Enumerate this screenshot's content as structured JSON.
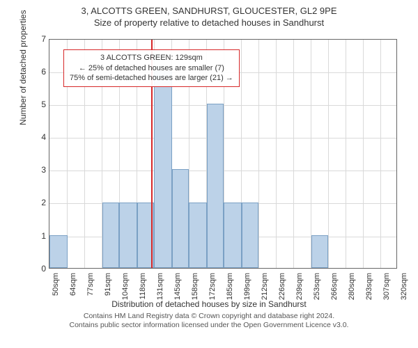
{
  "title_main": "3, ALCOTTS GREEN, SANDHURST, GLOUCESTER, GL2 9PE",
  "title_sub": "Size of property relative to detached houses in Sandhurst",
  "chart": {
    "type": "histogram",
    "xlabel": "Distribution of detached houses by size in Sandhurst",
    "ylabel": "Number of detached properties",
    "x_ticks": [
      "50sqm",
      "64sqm",
      "77sqm",
      "91sqm",
      "104sqm",
      "118sqm",
      "131sqm",
      "145sqm",
      "158sqm",
      "172sqm",
      "185sqm",
      "199sqm",
      "212sqm",
      "226sqm",
      "239sqm",
      "253sqm",
      "266sqm",
      "280sqm",
      "293sqm",
      "307sqm",
      "320sqm"
    ],
    "x_min": 50,
    "x_max": 320,
    "y_min": 0,
    "y_max": 7,
    "y_tick_step": 1,
    "grid_color": "#d9d9d9",
    "axis_color": "#666666",
    "background_color": "#ffffff",
    "bar_fill": "#bcd2e8",
    "bar_border": "#7aa0c4",
    "bars": [
      {
        "start": 50,
        "end": 64,
        "count": 1
      },
      {
        "start": 91,
        "end": 104,
        "count": 2
      },
      {
        "start": 104,
        "end": 118,
        "count": 2
      },
      {
        "start": 118,
        "end": 131,
        "count": 2
      },
      {
        "start": 131,
        "end": 145,
        "count": 6
      },
      {
        "start": 145,
        "end": 158,
        "count": 3
      },
      {
        "start": 158,
        "end": 172,
        "count": 2
      },
      {
        "start": 172,
        "end": 185,
        "count": 5
      },
      {
        "start": 185,
        "end": 199,
        "count": 2
      },
      {
        "start": 199,
        "end": 212,
        "count": 2
      },
      {
        "start": 253,
        "end": 266,
        "count": 1
      }
    ],
    "reference_line": {
      "value": 129,
      "color": "#d62728"
    },
    "annotation": {
      "line1": "3 ALCOTTS GREEN: 129sqm",
      "line2": "← 25% of detached houses are smaller (7)",
      "line3": "75% of semi-detached houses are larger (21) →",
      "border_color": "#d62728"
    }
  },
  "footer_line1": "Contains HM Land Registry data © Crown copyright and database right 2024.",
  "footer_line2": "Contains public sector information licensed under the Open Government Licence v3.0."
}
